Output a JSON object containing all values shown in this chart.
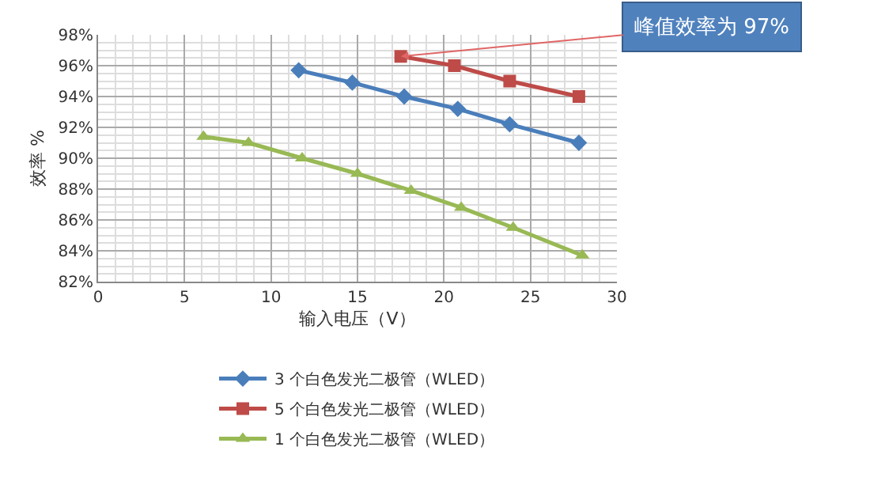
{
  "chart_data": {
    "type": "line",
    "xlabel": "输入电压（V）",
    "ylabel": "效率 %",
    "xlim": [
      0,
      30
    ],
    "xticks": [
      0,
      5,
      10,
      15,
      20,
      25,
      30
    ],
    "ylim": [
      82,
      98
    ],
    "yticks": [
      {
        "value": 82,
        "label": "82%"
      },
      {
        "value": 84,
        "label": "84%"
      },
      {
        "value": 86,
        "label": "86%"
      },
      {
        "value": 88,
        "label": "88%"
      },
      {
        "value": 90,
        "label": "90%"
      },
      {
        "value": 92,
        "label": "92%"
      },
      {
        "value": 94,
        "label": "94%"
      },
      {
        "value": 96,
        "label": "96%"
      },
      {
        "value": 98,
        "label": "98%"
      }
    ],
    "grid": true,
    "legend": "bottom",
    "series": [
      {
        "name": "3 个白色发光二极管（WLED）",
        "color": "#4a7ebb",
        "marker": "diamond",
        "x": [
          11.6,
          14.7,
          17.7,
          20.8,
          23.8,
          27.8
        ],
        "values": [
          95.7,
          94.9,
          94.0,
          93.2,
          92.2,
          91.0
        ]
      },
      {
        "name": "5 个白色发光二极管（WLED）",
        "color": "#be4b48",
        "marker": "square",
        "x": [
          17.5,
          20.6,
          23.8,
          27.8
        ],
        "values": [
          96.6,
          96.0,
          95.0,
          94.0
        ]
      },
      {
        "name": "1 个白色发光二极管（WLED）",
        "color": "#98b954",
        "marker": "triangle",
        "x": [
          6.1,
          8.7,
          11.8,
          15.0,
          18.1,
          21.0,
          24.0,
          28.0
        ],
        "values": [
          91.4,
          91.0,
          90.0,
          89.0,
          87.9,
          86.8,
          85.5,
          83.7
        ]
      }
    ],
    "annotations": [
      {
        "text": "峰值效率为 97%",
        "x": 17.5,
        "y": 96.6
      }
    ]
  }
}
